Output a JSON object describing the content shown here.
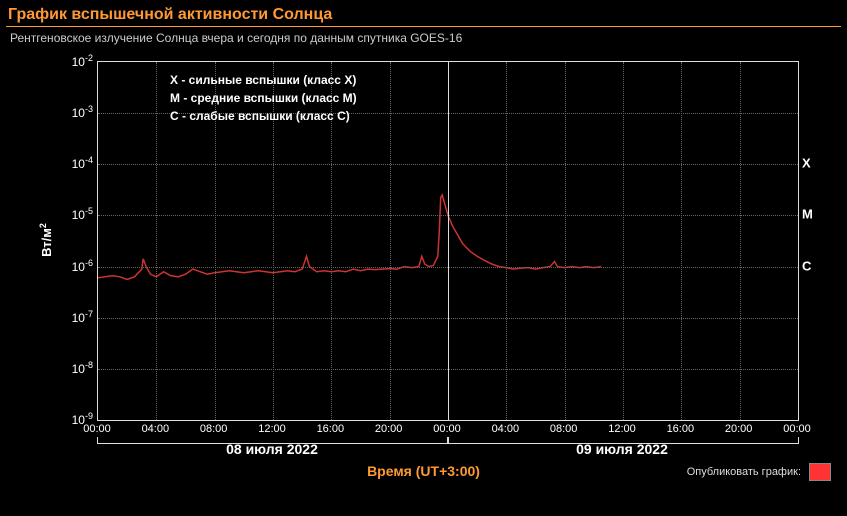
{
  "title": "График вспышечной активности Солнца",
  "subtitle": "Рентгеновское излучение Солнца вчера и сегодня по данным спутника GOES-16",
  "chart": {
    "type": "line-log",
    "background_color": "#000000",
    "axis_color": "#dddddd",
    "grid_color": "#666666",
    "line_color": "#cc3333",
    "line_width": 1.5,
    "ylabel_html": "Вт/м<sup>2</sup>",
    "xlabel": "Время (UT+3:00)",
    "y_exp_min": -9,
    "y_exp_max": -2,
    "y_ticks_exp": [
      -2,
      -3,
      -4,
      -5,
      -6,
      -7,
      -8,
      -9
    ],
    "x_hours_total": 48,
    "x_ticks": [
      "00:00",
      "04:00",
      "08:00",
      "12:00",
      "16:00",
      "20:00",
      "00:00",
      "04:00",
      "08:00",
      "12:00",
      "16:00",
      "20:00",
      "00:00"
    ],
    "date_labels": [
      {
        "text": "08 июля 2022",
        "from_h": 0,
        "to_h": 24
      },
      {
        "text": "09 июля 2022",
        "from_h": 24,
        "to_h": 48
      }
    ],
    "class_markers": [
      {
        "label": "X",
        "exp": -4
      },
      {
        "label": "M",
        "exp": -5
      },
      {
        "label": "C",
        "exp": -6
      }
    ],
    "legend_lines": [
      "X  - сильные вспышки (класс X)",
      "M - средние вспышки (класс M)",
      "С  - слабые вспышки (класс C)"
    ],
    "series_log10": [
      [
        0.0,
        -6.22
      ],
      [
        0.5,
        -6.2
      ],
      [
        1.0,
        -6.18
      ],
      [
        1.5,
        -6.2
      ],
      [
        2.0,
        -6.25
      ],
      [
        2.5,
        -6.2
      ],
      [
        3.0,
        -6.05
      ],
      [
        3.1,
        -5.85
      ],
      [
        3.3,
        -6.0
      ],
      [
        3.6,
        -6.15
      ],
      [
        4.0,
        -6.2
      ],
      [
        4.5,
        -6.1
      ],
      [
        5.0,
        -6.18
      ],
      [
        5.5,
        -6.2
      ],
      [
        6.0,
        -6.15
      ],
      [
        6.5,
        -6.05
      ],
      [
        7.0,
        -6.1
      ],
      [
        7.5,
        -6.15
      ],
      [
        8.0,
        -6.12
      ],
      [
        8.5,
        -6.1
      ],
      [
        9.0,
        -6.08
      ],
      [
        9.5,
        -6.1
      ],
      [
        10.0,
        -6.12
      ],
      [
        10.5,
        -6.1
      ],
      [
        11.0,
        -6.08
      ],
      [
        11.5,
        -6.1
      ],
      [
        12.0,
        -6.12
      ],
      [
        12.5,
        -6.1
      ],
      [
        13.0,
        -6.08
      ],
      [
        13.5,
        -6.1
      ],
      [
        14.0,
        -6.05
      ],
      [
        14.3,
        -5.8
      ],
      [
        14.5,
        -6.0
      ],
      [
        15.0,
        -6.1
      ],
      [
        15.5,
        -6.08
      ],
      [
        16.0,
        -6.1
      ],
      [
        16.5,
        -6.08
      ],
      [
        17.0,
        -6.1
      ],
      [
        17.5,
        -6.05
      ],
      [
        18.0,
        -6.08
      ],
      [
        18.5,
        -6.05
      ],
      [
        19.0,
        -6.06
      ],
      [
        19.5,
        -6.05
      ],
      [
        20.0,
        -6.04
      ],
      [
        20.5,
        -6.05
      ],
      [
        21.0,
        -6.0
      ],
      [
        21.5,
        -6.02
      ],
      [
        22.0,
        -6.0
      ],
      [
        22.2,
        -5.8
      ],
      [
        22.4,
        -5.95
      ],
      [
        22.7,
        -6.0
      ],
      [
        23.0,
        -5.98
      ],
      [
        23.3,
        -5.8
      ],
      [
        23.4,
        -5.3
      ],
      [
        23.5,
        -4.65
      ],
      [
        23.6,
        -4.6
      ],
      [
        23.8,
        -4.8
      ],
      [
        24.0,
        -5.0
      ],
      [
        24.3,
        -5.2
      ],
      [
        24.7,
        -5.4
      ],
      [
        25.0,
        -5.55
      ],
      [
        25.5,
        -5.7
      ],
      [
        26.0,
        -5.8
      ],
      [
        26.5,
        -5.88
      ],
      [
        27.0,
        -5.95
      ],
      [
        27.5,
        -6.0
      ],
      [
        28.0,
        -6.02
      ],
      [
        28.5,
        -6.05
      ],
      [
        29.0,
        -6.03
      ],
      [
        29.5,
        -6.02
      ],
      [
        30.0,
        -6.05
      ],
      [
        30.5,
        -6.02
      ],
      [
        31.0,
        -6.0
      ],
      [
        31.3,
        -5.9
      ],
      [
        31.5,
        -6.0
      ],
      [
        32.0,
        -6.02
      ],
      [
        32.5,
        -6.0
      ],
      [
        33.0,
        -6.02
      ],
      [
        33.5,
        -6.0
      ],
      [
        34.0,
        -6.02
      ],
      [
        34.5,
        -6.0
      ]
    ],
    "publish_label": "Опубликовать график:",
    "publish_color": "#ff3333"
  }
}
